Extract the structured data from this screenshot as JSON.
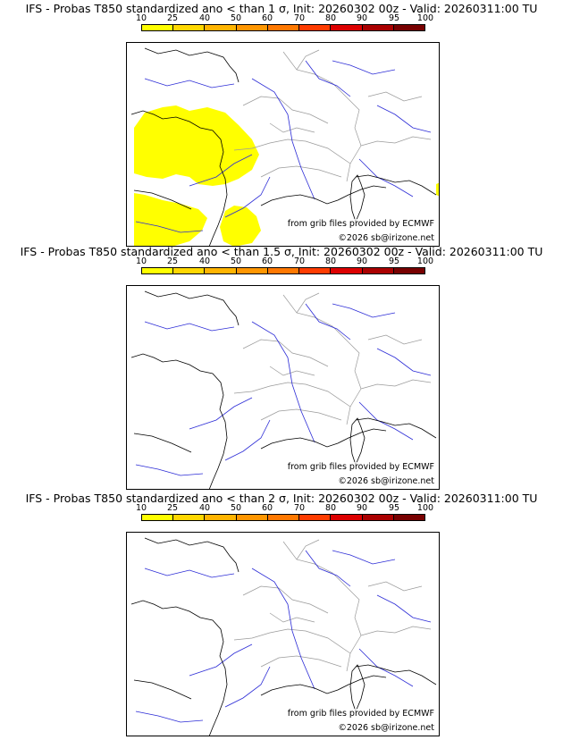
{
  "colorbar": {
    "ticks": [
      "10",
      "25",
      "40",
      "50",
      "60",
      "70",
      "80",
      "90",
      "95",
      "100"
    ],
    "colors": [
      "#ffff00",
      "#ffd700",
      "#ffb400",
      "#ff9600",
      "#ff7800",
      "#ff3c00",
      "#dc0000",
      "#aa0000",
      "#780000"
    ]
  },
  "panels": [
    {
      "title": "IFS - Probas T850  standardized ano < than 1 σ, Init: 20260302 00z - Valid: 20260311:00 TU",
      "source": "from grib files provided by ECMWF",
      "copyright": "©2026 sb@irizone.net"
    },
    {
      "title": "IFS - Probas T850  standardized ano < than 1.5 σ, Init: 20260302 00z - Valid: 20260311:00 TU",
      "source": "from grib files provided by ECMWF",
      "copyright": "©2026 sb@irizone.net"
    },
    {
      "title": "IFS - Probas T850  standardized ano < than 2 σ, Init: 20260302 00z - Valid: 20260311:00 TU",
      "source": "from grib files provided by ECMWF",
      "copyright": "©2026 sb@irizone.net"
    }
  ],
  "map_colors": {
    "coast": "#000000",
    "rivers": "#2b2bd6",
    "borders": "#9a9a9a",
    "probability_fill": "#ffff00"
  }
}
